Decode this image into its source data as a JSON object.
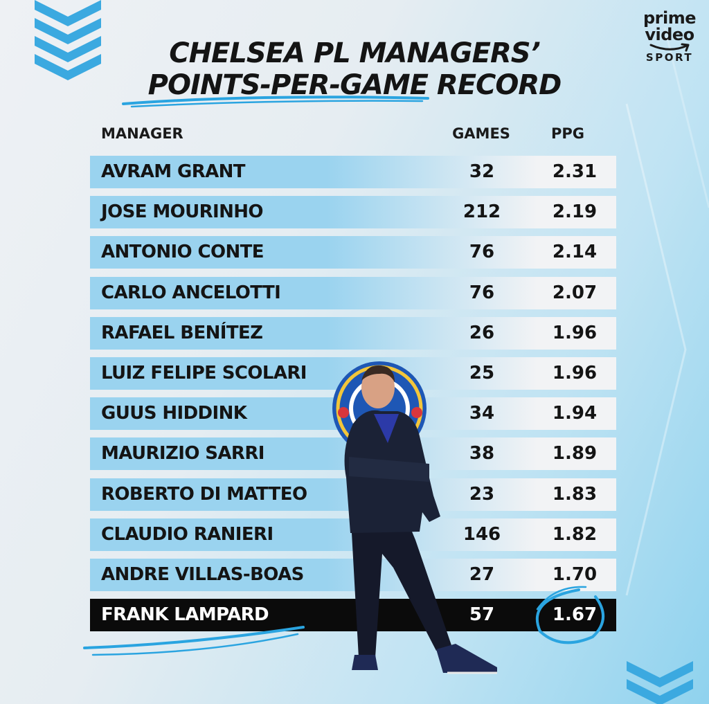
{
  "brand": {
    "line1": "prime",
    "line2": "video",
    "line3": "SPORT"
  },
  "title": {
    "line1": "CHELSEA PL MANAGERS’",
    "line2": "POINTS-PER-GAME RECORD"
  },
  "headers": {
    "manager": "MANAGER",
    "games": "GAMES",
    "ppg": "PPG"
  },
  "managers": [
    {
      "name": "AVRAM GRANT",
      "games": "32",
      "ppg": "2.31"
    },
    {
      "name": "JOSE MOURINHO",
      "games": "212",
      "ppg": "2.19"
    },
    {
      "name": "ANTONIO CONTE",
      "games": "76",
      "ppg": "2.14"
    },
    {
      "name": "CARLO ANCELOTTI",
      "games": "76",
      "ppg": "2.07"
    },
    {
      "name": "RAFAEL BENÍTEZ",
      "games": "26",
      "ppg": "1.96"
    },
    {
      "name": "LUIZ FELIPE SCOLARI",
      "games": "25",
      "ppg": "1.96"
    },
    {
      "name": "GUUS HIDDINK",
      "games": "34",
      "ppg": "1.94"
    },
    {
      "name": "MAURIZIO SARRI",
      "games": "38",
      "ppg": "1.89"
    },
    {
      "name": "ROBERTO DI MATTEO",
      "games": "23",
      "ppg": "1.83"
    },
    {
      "name": "CLAUDIO RANIERI",
      "games": "146",
      "ppg": "1.82"
    },
    {
      "name": "ANDRE VILLAS-BOAS",
      "games": "27",
      "ppg": "1.70"
    },
    {
      "name": "FRANK LAMPARD",
      "games": "57",
      "ppg": "1.67",
      "highlight": true
    }
  ],
  "colors": {
    "accent": "#2aa4e0",
    "row_light": "#f2f3f5",
    "row_blue": "#9ad3ef",
    "highlight_row": "#0b0b0b"
  },
  "images": {
    "crest": "chelsea-crest",
    "player": "manager-photo"
  }
}
